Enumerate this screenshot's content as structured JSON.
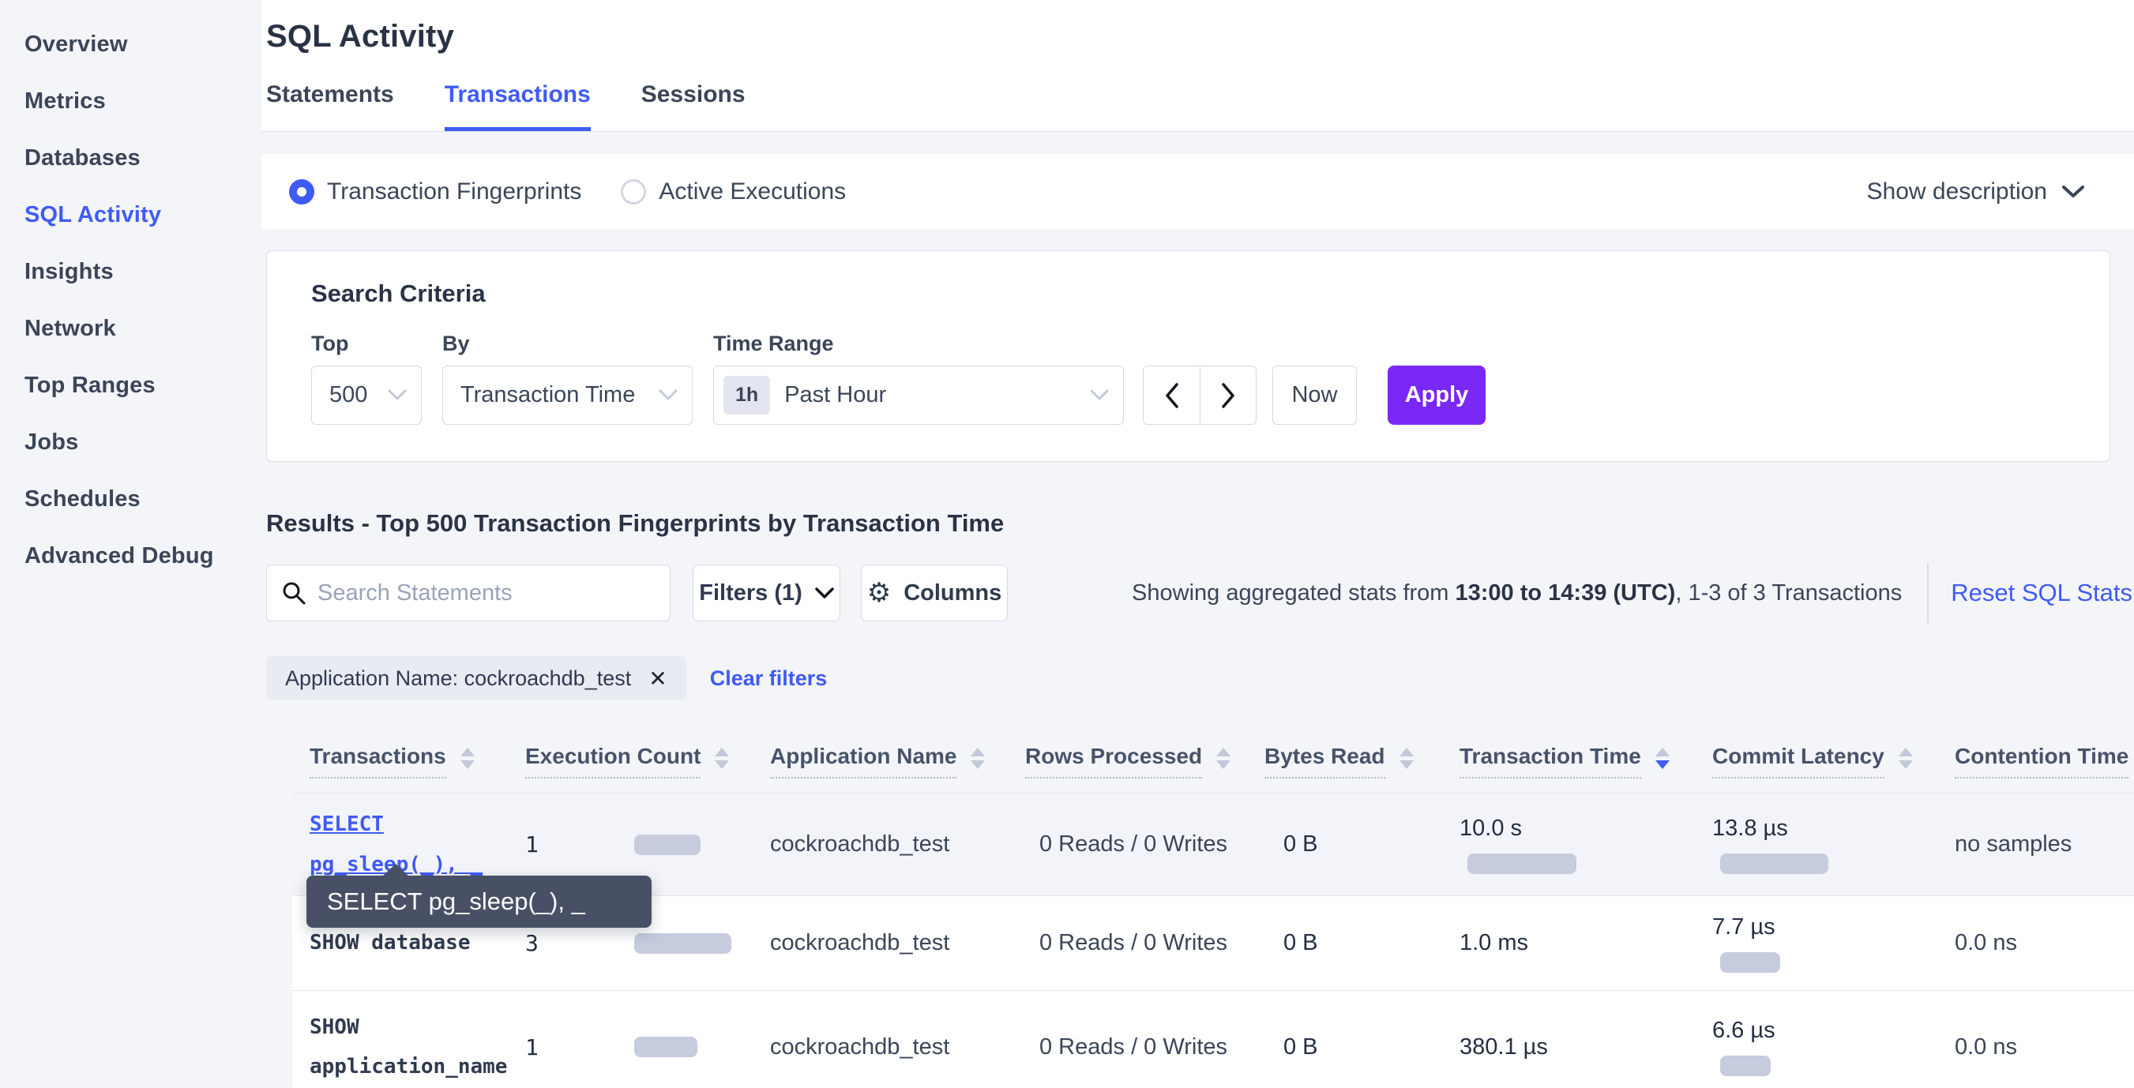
{
  "colors": {
    "accent_blue": "#3f5bf6",
    "apply_purple": "#7a28f5",
    "bar_fill": "#c6cbde",
    "tooltip_bg": "#475065",
    "page_bg": "#f4f5f9"
  },
  "icons": {
    "gear": "⚙",
    "close": "✕"
  },
  "sidebar": {
    "items": [
      {
        "label": "Overview",
        "active": false
      },
      {
        "label": "Metrics",
        "active": false
      },
      {
        "label": "Databases",
        "active": false
      },
      {
        "label": "SQL Activity",
        "active": true
      },
      {
        "label": "Insights",
        "active": false
      },
      {
        "label": "Network",
        "active": false
      },
      {
        "label": "Top Ranges",
        "active": false
      },
      {
        "label": "Jobs",
        "active": false
      },
      {
        "label": "Schedules",
        "active": false
      },
      {
        "label": "Advanced Debug",
        "active": false
      }
    ]
  },
  "header": {
    "title": "SQL Activity",
    "tabs": [
      {
        "label": "Statements",
        "active": false
      },
      {
        "label": "Transactions",
        "active": true
      },
      {
        "label": "Sessions",
        "active": false
      }
    ]
  },
  "view_toggle": {
    "options": [
      {
        "label": "Transaction Fingerprints",
        "selected": true
      },
      {
        "label": "Active Executions",
        "selected": false
      }
    ],
    "show_description_label": "Show description"
  },
  "search_criteria": {
    "title": "Search Criteria",
    "top": {
      "label": "Top",
      "value": "500"
    },
    "by": {
      "label": "By",
      "value": "Transaction Time"
    },
    "time_range": {
      "label": "Time Range",
      "badge": "1h",
      "value": "Past Hour"
    },
    "now_label": "Now",
    "apply_label": "Apply"
  },
  "results": {
    "heading": "Results - Top 500 Transaction Fingerprints by Transaction Time",
    "search_placeholder": "Search Statements",
    "filters_label": "Filters (1)",
    "columns_label": "Columns",
    "stats_prefix": "Showing aggregated stats from ",
    "stats_range": "13:00 to 14:39 (UTC)",
    "stats_suffix": ", 1-3 of 3 Transactions",
    "reset_label": "Reset SQL Stats",
    "filter_chip": "Application Name: cockroachdb_test",
    "clear_filters_label": "Clear filters"
  },
  "tooltip": {
    "text": "SELECT pg_sleep(_), _"
  },
  "table": {
    "columns": [
      {
        "label": "Transactions",
        "sort": "none"
      },
      {
        "label": "Execution Count",
        "sort": "none"
      },
      {
        "label": "Application Name",
        "sort": "none"
      },
      {
        "label": "Rows Processed",
        "sort": "none"
      },
      {
        "label": "Bytes Read",
        "sort": "none"
      },
      {
        "label": "Transaction Time",
        "sort": "desc"
      },
      {
        "label": "Commit Latency",
        "sort": "none"
      },
      {
        "label": "Contention Time",
        "sort": "none"
      }
    ],
    "rows": [
      {
        "transaction": "SELECT pg_sleep(_), _",
        "is_link": true,
        "hovered": true,
        "execution_count": "1",
        "exec_bar_w": 84,
        "application_name": "cockroachdb_test",
        "rows_processed": "0 Reads / 0 Writes",
        "bytes_read": "0 B",
        "transaction_time": "10.0 s",
        "txn_bar_w": 138,
        "commit_latency": "13.8 µs",
        "commit_bar_w": 137,
        "contention_time": "no samples"
      },
      {
        "transaction": "SHOW database",
        "is_link": false,
        "hovered": false,
        "execution_count": "3",
        "exec_bar_w": 123,
        "application_name": "cockroachdb_test",
        "rows_processed": "0 Reads / 0 Writes",
        "bytes_read": "0 B",
        "transaction_time": "1.0 ms",
        "txn_bar_w": 0,
        "commit_latency": "7.7 µs",
        "commit_bar_w": 76,
        "contention_time": "0.0 ns"
      },
      {
        "transaction": "SHOW application_name",
        "is_link": false,
        "hovered": false,
        "execution_count": "1",
        "exec_bar_w": 80,
        "application_name": "cockroachdb_test",
        "rows_processed": "0 Reads / 0 Writes",
        "bytes_read": "0 B",
        "transaction_time": "380.1 µs",
        "txn_bar_w": 0,
        "commit_latency": "6.6 µs",
        "commit_bar_w": 64,
        "contention_time": "0.0 ns"
      }
    ]
  }
}
